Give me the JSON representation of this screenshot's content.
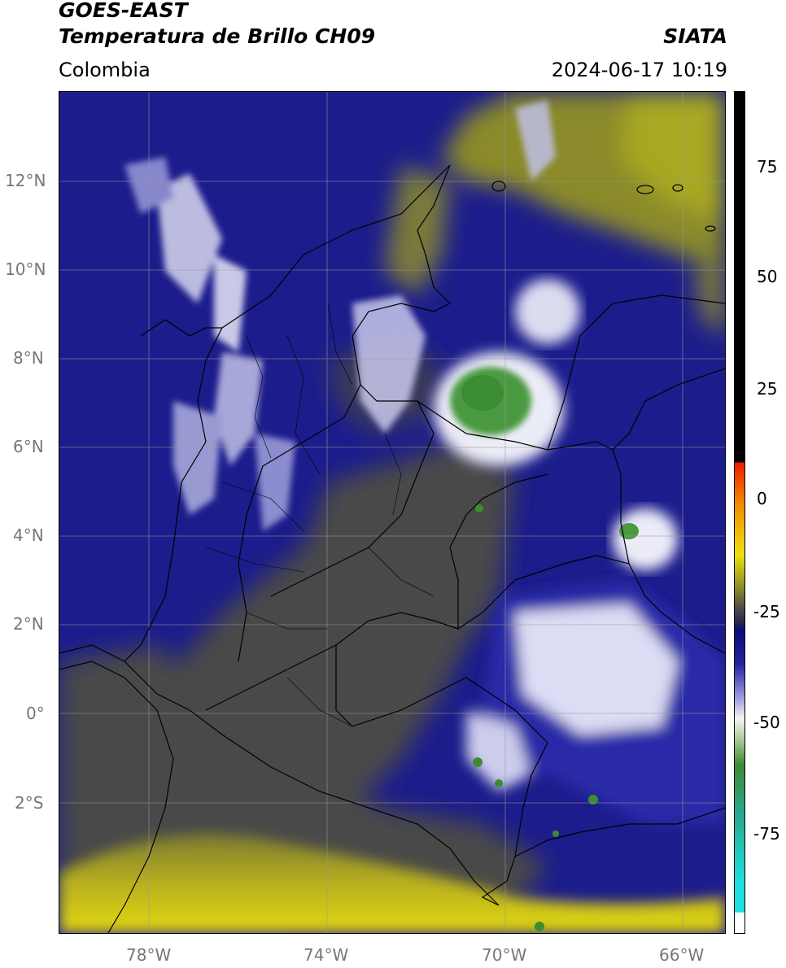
{
  "header": {
    "title_line1": "GOES-EAST",
    "title_line2": "Temperatura de Brillo CH09",
    "organization": "SIATA",
    "region": "Colombia",
    "timestamp": "2024-06-17 10:19"
  },
  "map": {
    "lat_labels": [
      "12°N",
      "10°N",
      "8°N",
      "6°N",
      "4°N",
      "2°N",
      "0°",
      "2°S"
    ],
    "lon_labels": [
      "78°W",
      "74°W",
      "70°W",
      "66°W"
    ]
  },
  "colorbar": {
    "tick_labels": [
      "75",
      "50",
      "25",
      "0",
      "-25",
      "-50",
      "-75"
    ],
    "colors": {
      "white": "#ffffff",
      "cyan": "#1ee0e0",
      "teal": "#2aa890",
      "green": "#3c8c32",
      "light_green": "#a8cc98",
      "white_mid": "#f4f4f4",
      "blue_light": "#9a9ae0",
      "blue": "#2424a0",
      "navy": "#0a0a78",
      "grey": "#4a4a4a",
      "olive": "#8a8a2a",
      "yellow": "#f0e010",
      "orange": "#f08c00",
      "red": "#f01c00",
      "black": "#000000"
    }
  }
}
